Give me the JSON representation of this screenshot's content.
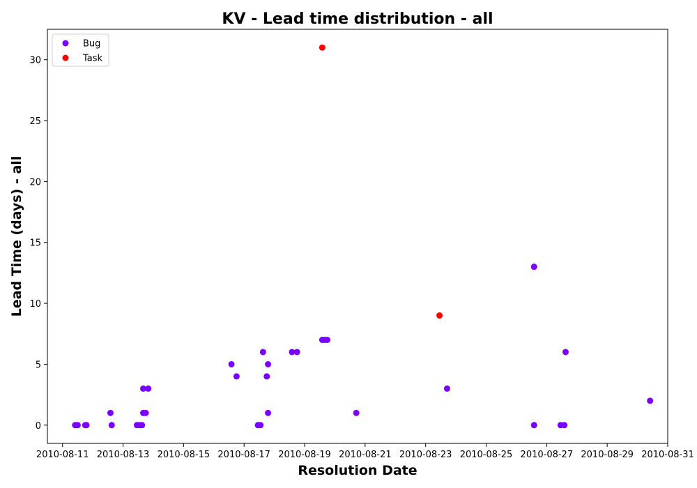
{
  "chart_data": {
    "type": "scatter",
    "title": "KV - Lead time distribution - all",
    "xlabel": "Resolution Date",
    "ylabel": "Lead Time (days) - all",
    "x_type": "date",
    "xlim": [
      "2010-08-10T12:00",
      "2010-08-31T00:00"
    ],
    "ylim": [
      -1.5,
      32.5
    ],
    "x_ticks": [
      "2010-08-11",
      "2010-08-13",
      "2010-08-15",
      "2010-08-17",
      "2010-08-19",
      "2010-08-21",
      "2010-08-23",
      "2010-08-25",
      "2010-08-27",
      "2010-08-29",
      "2010-08-31"
    ],
    "y_ticks": [
      0,
      5,
      10,
      15,
      20,
      25,
      30
    ],
    "grid": false,
    "legend": "top-left",
    "series": [
      {
        "name": "Bug",
        "color": "#7a00ff",
        "points": [
          {
            "x": "2010-08-11T10:00",
            "y": 0
          },
          {
            "x": "2010-08-11T12:00",
            "y": 0
          },
          {
            "x": "2010-08-11T18:00",
            "y": 0
          },
          {
            "x": "2010-08-11T19:00",
            "y": 0
          },
          {
            "x": "2010-08-12T14:00",
            "y": 1
          },
          {
            "x": "2010-08-12T15:00",
            "y": 0
          },
          {
            "x": "2010-08-13T11:00",
            "y": 0
          },
          {
            "x": "2010-08-13T13:00",
            "y": 0
          },
          {
            "x": "2010-08-13T15:00",
            "y": 0
          },
          {
            "x": "2010-08-13T16:00",
            "y": 3
          },
          {
            "x": "2010-08-13T16:00",
            "y": 1
          },
          {
            "x": "2010-08-13T18:00",
            "y": 1
          },
          {
            "x": "2010-08-13T20:00",
            "y": 3
          },
          {
            "x": "2010-08-16T14:00",
            "y": 5
          },
          {
            "x": "2010-08-16T18:00",
            "y": 4
          },
          {
            "x": "2010-08-17T11:00",
            "y": 0
          },
          {
            "x": "2010-08-17T13:00",
            "y": 0
          },
          {
            "x": "2010-08-17T15:00",
            "y": 6
          },
          {
            "x": "2010-08-17T18:00",
            "y": 4
          },
          {
            "x": "2010-08-17T19:00",
            "y": 5
          },
          {
            "x": "2010-08-17T19:00",
            "y": 1
          },
          {
            "x": "2010-08-18T14:00",
            "y": 6
          },
          {
            "x": "2010-08-18T18:00",
            "y": 6
          },
          {
            "x": "2010-08-19T14:00",
            "y": 7
          },
          {
            "x": "2010-08-19T16:00",
            "y": 7
          },
          {
            "x": "2010-08-19T18:00",
            "y": 7
          },
          {
            "x": "2010-08-20T17:00",
            "y": 1
          },
          {
            "x": "2010-08-23T17:00",
            "y": 3
          },
          {
            "x": "2010-08-26T14:00",
            "y": 13
          },
          {
            "x": "2010-08-26T14:00",
            "y": 0
          },
          {
            "x": "2010-08-27T11:00",
            "y": 0
          },
          {
            "x": "2010-08-27T14:00",
            "y": 0
          },
          {
            "x": "2010-08-27T15:00",
            "y": 6
          },
          {
            "x": "2010-08-30T10:00",
            "y": 2
          }
        ]
      },
      {
        "name": "Task",
        "color": "#ff0000",
        "points": [
          {
            "x": "2010-08-19T14:00",
            "y": 31
          },
          {
            "x": "2010-08-23T11:00",
            "y": 9
          }
        ]
      }
    ]
  }
}
